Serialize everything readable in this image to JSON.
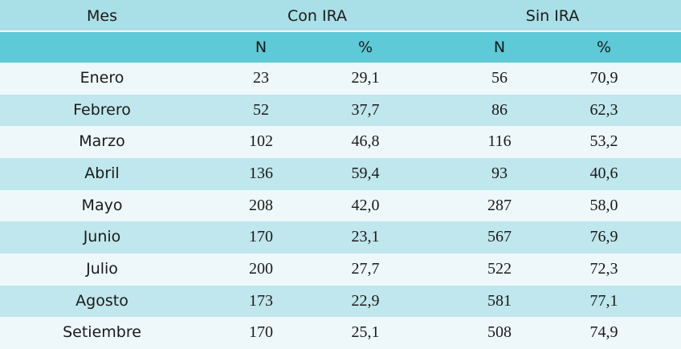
{
  "table": {
    "header": [
      "Mes",
      "Con IRA",
      "Sin IRA"
    ],
    "subheader": [
      "N",
      "%",
      "N",
      "%"
    ],
    "rows": [
      [
        "Enero",
        "23",
        "29,1",
        "56",
        "70,9"
      ],
      [
        "Febrero",
        "52",
        "37,7",
        "86",
        "62,3"
      ],
      [
        "Marzo",
        "102",
        "46,8",
        "116",
        "53,2"
      ],
      [
        "Abril",
        "136",
        "59,4",
        "93",
        "40,6"
      ],
      [
        "Mayo",
        "208",
        "42,0",
        "287",
        "58,0"
      ],
      [
        "Junio",
        "170",
        "23,1",
        "567",
        "76,9"
      ],
      [
        "Julio",
        "200",
        "27,7",
        "522",
        "72,3"
      ],
      [
        "Agosto",
        "173",
        "22,9",
        "581",
        "77,1"
      ],
      [
        "Setiembre",
        "170",
        "25,1",
        "508",
        "74,9"
      ]
    ]
  }
}
